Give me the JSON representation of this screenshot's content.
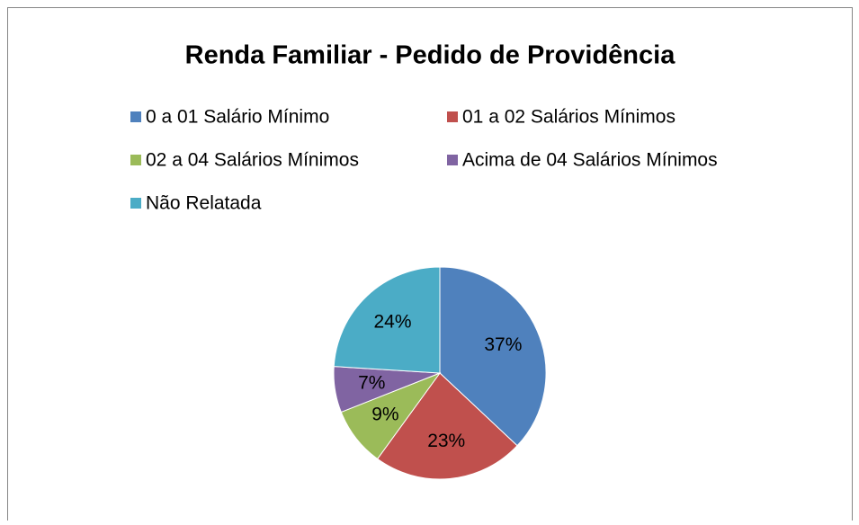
{
  "chart_data": {
    "type": "pie",
    "title": "Renda Familiar - Pedido de Providência",
    "categories": [
      "0 a 01 Salário Mínimo",
      "01 a 02 Salários Mínimos",
      "02 a 04 Salários Mínimos",
      "Acima de 04 Salários Mínimos",
      "Não Relatada"
    ],
    "values": [
      37,
      23,
      9,
      7,
      24
    ],
    "value_labels": [
      "37%",
      "23%",
      "9%",
      "7%",
      "24%"
    ],
    "colors": [
      "#4f81bd",
      "#c0504d",
      "#9bbb59",
      "#8064a2",
      "#4bacc6"
    ],
    "legend": "top"
  }
}
